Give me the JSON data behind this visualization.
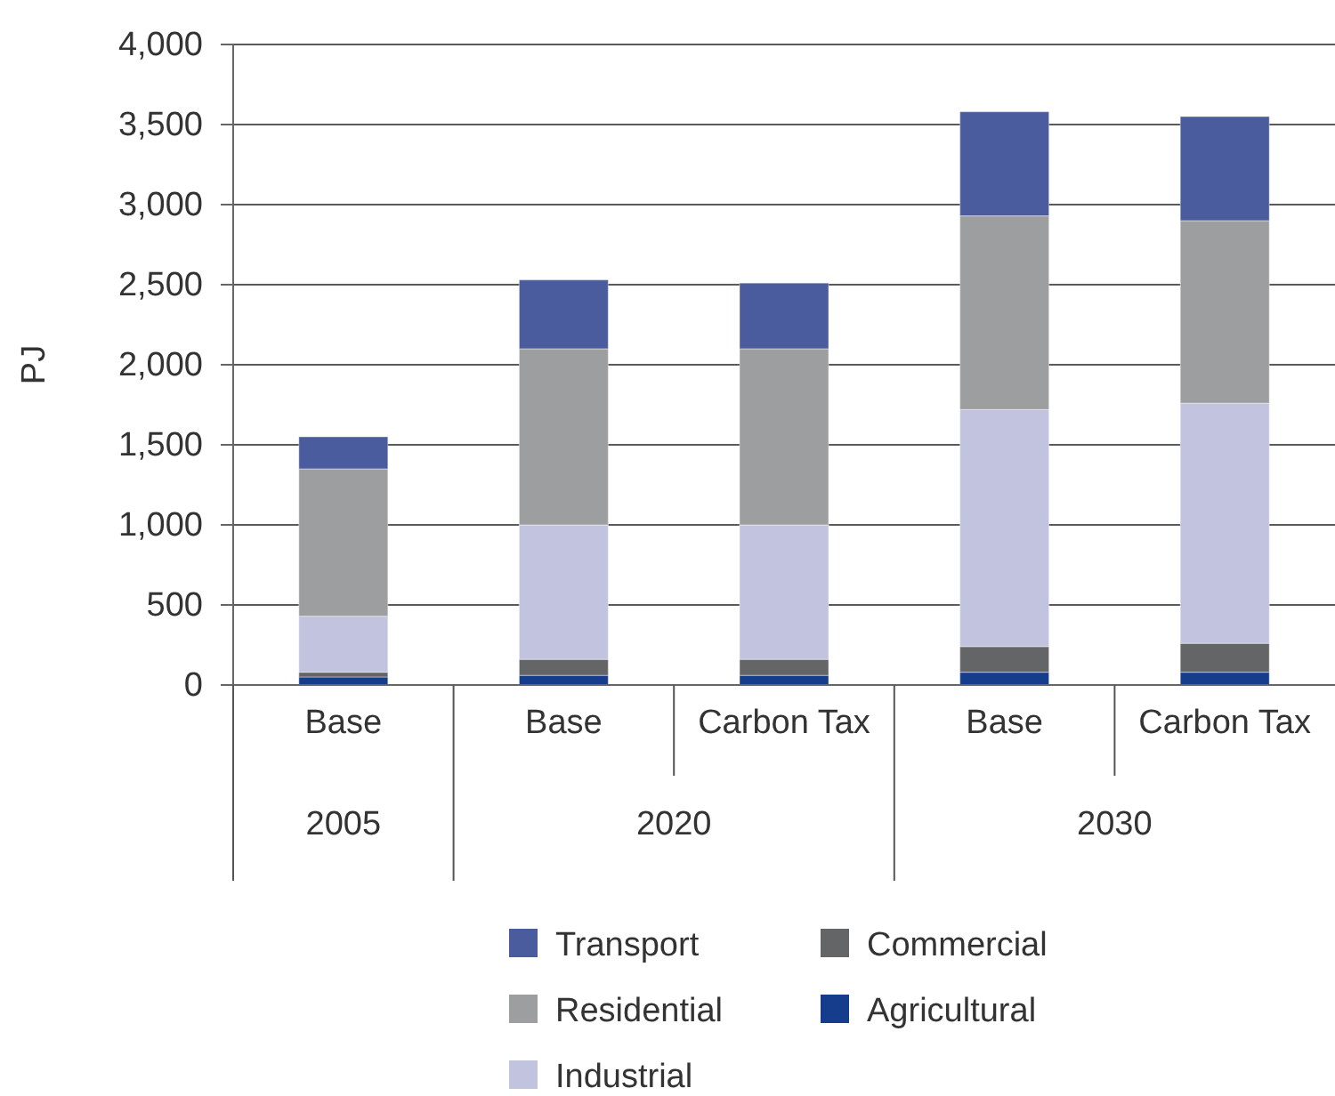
{
  "chart_data": {
    "type": "bar",
    "stacked": true,
    "ylabel": "PJ",
    "categories": [
      "Base",
      "Base",
      "Carbon Tax",
      "Base",
      "Carbon Tax"
    ],
    "annotations": [
      "2005",
      "2020",
      "2030"
    ],
    "series": [
      {
        "name": "Agricultural",
        "color": "#163c8c",
        "values": [
          50,
          60,
          60,
          80,
          80
        ]
      },
      {
        "name": "Commercial",
        "color": "#646567",
        "values": [
          30,
          100,
          100,
          160,
          180
        ]
      },
      {
        "name": "Industrial",
        "color": "#c2c3de",
        "values": [
          350,
          840,
          840,
          1480,
          1500
        ]
      },
      {
        "name": "Residential",
        "color": "#9d9ea0",
        "values": [
          920,
          1100,
          1100,
          1210,
          1140
        ]
      },
      {
        "name": "Transport",
        "color": "#4b5c9e",
        "values": [
          200,
          430,
          410,
          650,
          650
        ]
      }
    ],
    "ylim": [
      0,
      4000
    ],
    "yticks": [
      0,
      500,
      {
        "value": 1000,
        "label": "1,000"
      },
      {
        "value": 1500,
        "label": "1,500"
      },
      {
        "value": 2000,
        "label": "2,000"
      },
      {
        "value": 2500,
        "label": "2,500"
      },
      {
        "value": 3000,
        "label": "3,000"
      },
      {
        "value": 3500,
        "label": "3,500"
      },
      {
        "value": 4000,
        "label": "4,000"
      }
    ],
    "grid": "y",
    "legend": "bottom"
  }
}
